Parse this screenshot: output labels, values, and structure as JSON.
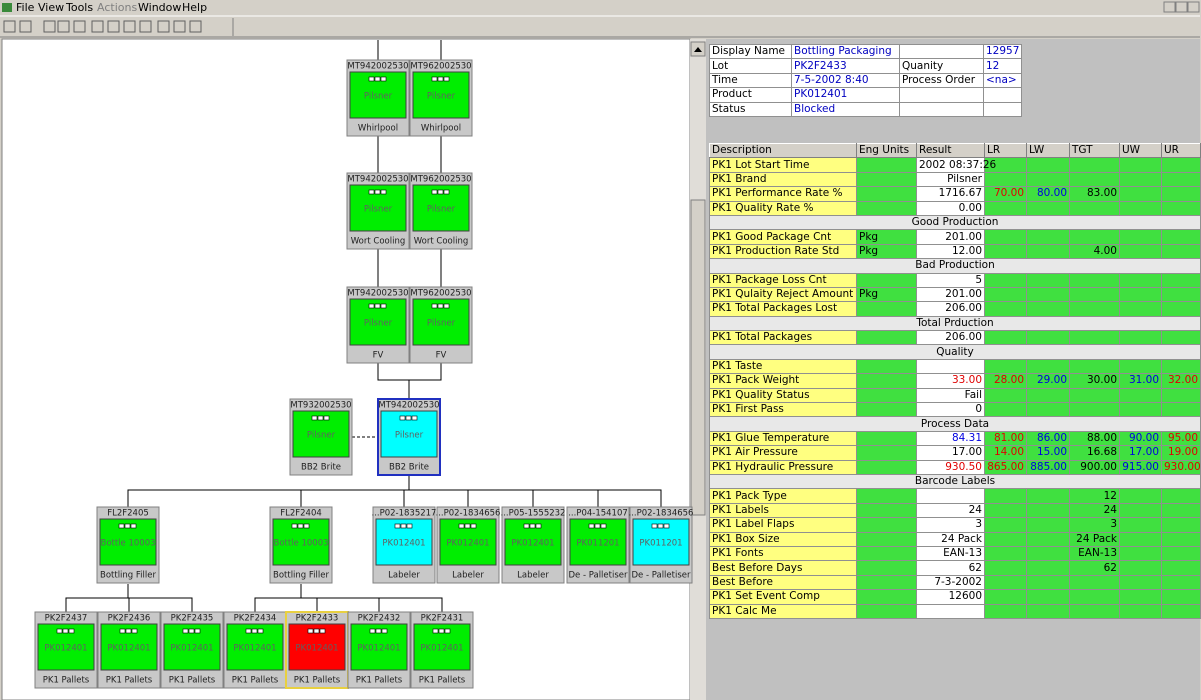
{
  "menu": [
    "File",
    "View",
    "Tools",
    "Actions",
    "Window",
    "Help"
  ],
  "nodes": [
    {
      "id": "MT942002530",
      "product": "Pilsner",
      "label": "Whirlpool",
      "color": "#00ee00"
    },
    {
      "id": "MT962002530",
      "product": "Pilsner",
      "label": "Whirlpool",
      "color": "#00ee00"
    },
    {
      "id": "MT942002530",
      "product": "Pilsner",
      "label": "Wort Cooling",
      "color": "#00ee00"
    },
    {
      "id": "MT962002530",
      "product": "Pilsner",
      "label": "Wort Cooling",
      "color": "#00ee00"
    },
    {
      "id": "MT942002530",
      "product": "Pilsner",
      "label": "FV",
      "color": "#00ee00"
    },
    {
      "id": "MT962002530",
      "product": "Pilsner",
      "label": "FV",
      "color": "#00ee00"
    },
    {
      "id": "MT932002530",
      "product": "Pilsner",
      "label": "BB2 Brite",
      "color": "#00ee00"
    },
    {
      "id": "MT942002530",
      "product": "Pilsner",
      "label": "BB2 Brite",
      "color": "#00ffff",
      "selected": true
    },
    {
      "id": "FL2F2405",
      "product": "Bottle 10003",
      "label": "Bottling Filler",
      "color": "#00ee00"
    },
    {
      "id": "FL2F2404",
      "product": "Bottle 10003",
      "label": "Bottling Filler",
      "color": "#00ee00"
    },
    {
      "id": "...P02-1835217",
      "product": "PK012401",
      "label": "Labeler",
      "color": "#00ffff"
    },
    {
      "id": "...P02-1834656",
      "product": "PK012401",
      "label": "Labeler",
      "color": "#00ee00"
    },
    {
      "id": "...P05-1555232",
      "product": "PK012401",
      "label": "Labeler",
      "color": "#00ee00"
    },
    {
      "id": "...P04-154107",
      "product": "PK011201",
      "label": "De - Palletiser",
      "color": "#00ee00"
    },
    {
      "id": "...P02-1834656",
      "product": "PK011201",
      "label": "De - Palletiser",
      "color": "#00ffff"
    },
    {
      "id": "PK2F2437",
      "product": "PK012401",
      "label": "PK1 Pallets",
      "color": "#00ee00"
    },
    {
      "id": "PK2F2436",
      "product": "PK012401",
      "label": "PK1 Pallets",
      "color": "#00ee00"
    },
    {
      "id": "PK2F2435",
      "product": "PK012401",
      "label": "PK1 Pallets",
      "color": "#00ee00"
    },
    {
      "id": "PK2F2434",
      "product": "PK012401",
      "label": "PK1 Pallets",
      "color": "#00ee00"
    },
    {
      "id": "PK2F2433",
      "product": "PK012401",
      "label": "PK1 Pallets",
      "color": "#ff0000",
      "selected": true
    },
    {
      "id": "PK2F2432",
      "product": "PK012401",
      "label": "PK1 Pallets",
      "color": "#00ee00"
    },
    {
      "id": "PK2F2431",
      "product": "PK012401",
      "label": "PK1 Pallets",
      "color": "#00ee00"
    }
  ],
  "info": {
    "rows": [
      [
        "Display Name",
        "Bottling Packaging",
        null,
        "12957"
      ],
      [
        "Lot",
        "PK2F2433",
        "Quanity",
        "12"
      ],
      [
        "Time",
        "7-5-2002 8:40",
        "Process Order",
        "<na>"
      ],
      [
        "Product",
        "PK012401",
        null,
        null
      ],
      [
        "Status",
        "Blocked",
        null,
        null
      ]
    ]
  },
  "table": {
    "columns": [
      "Description",
      "Eng Units",
      "Result",
      "LR",
      "LW",
      "TGT",
      "UW",
      "UR"
    ],
    "column_colors": [
      "#000000",
      "#000000",
      "#000000",
      "#e00000",
      "#0000e0",
      "#000000",
      "#0000e0",
      "#e00000"
    ],
    "rows": [
      {
        "cells": [
          "PK1 Lot Start Time",
          null,
          "2002 08:37:26",
          null,
          null,
          null,
          null,
          null
        ]
      },
      {
        "cells": [
          "PK1 Brand",
          null,
          "Pilsner",
          null,
          null,
          null,
          null,
          null
        ]
      },
      {
        "cells": [
          "PK1 Performance Rate %",
          null,
          "1716.67",
          "70.00",
          "80.00",
          "83.00",
          null,
          null
        ]
      },
      {
        "cells": [
          "PK1 Quality Rate %",
          null,
          "0.00",
          null,
          null,
          null,
          null,
          null
        ]
      },
      {
        "section": "Good Production"
      },
      {
        "cells": [
          "PK1 Good Package Cnt",
          "Pkg",
          "201.00",
          null,
          null,
          null,
          null,
          null
        ]
      },
      {
        "cells": [
          "PK1 Production Rate Std",
          "Pkg",
          "12.00",
          null,
          null,
          "4.00",
          null,
          null
        ]
      },
      {
        "section": "Bad Production"
      },
      {
        "cells": [
          "PK1 Package Loss Cnt",
          null,
          "5",
          null,
          null,
          null,
          null,
          null
        ]
      },
      {
        "cells": [
          "PK1 Qulaity Reject Amount",
          "Pkg",
          "201.00",
          null,
          null,
          null,
          null,
          null
        ]
      },
      {
        "cells": [
          "PK1 Total Packages Lost",
          null,
          "206.00",
          null,
          null,
          null,
          null,
          null
        ]
      },
      {
        "section": "Total Prduction"
      },
      {
        "cells": [
          "PK1 Total Packages",
          null,
          "206.00",
          null,
          null,
          null,
          null,
          null
        ]
      },
      {
        "section": "Quality"
      },
      {
        "cells": [
          "PK1 Taste",
          null,
          null,
          null,
          null,
          null,
          null,
          null
        ]
      },
      {
        "cells": [
          "PK1 Pack Weight",
          null,
          "33.00",
          "28.00",
          "29.00",
          "30.00",
          "31.00",
          "32.00"
        ],
        "result_color": "#e00000"
      },
      {
        "cells": [
          "PK1 Quality Status",
          null,
          "Fail",
          null,
          null,
          null,
          null,
          null
        ]
      },
      {
        "cells": [
          "PK1 First Pass",
          null,
          "0",
          null,
          null,
          null,
          null,
          null
        ]
      },
      {
        "section": "Process Data"
      },
      {
        "cells": [
          "PK1 Glue Temperature",
          null,
          "84.31",
          "81.00",
          "86.00",
          "88.00",
          "90.00",
          "95.00"
        ],
        "result_color": "#0000e0"
      },
      {
        "cells": [
          "PK1 Air Pressure",
          null,
          "17.00",
          "14.00",
          "15.00",
          "16.68",
          "17.00",
          "19.00"
        ]
      },
      {
        "cells": [
          "PK1 Hydraulic Pressure",
          null,
          "930.50",
          "865.00",
          "885.00",
          "900.00",
          "915.00",
          "930.00"
        ],
        "result_color": "#e00000"
      },
      {
        "section": "Barcode Labels"
      },
      {
        "cells": [
          "PK1 Pack Type",
          null,
          null,
          null,
          null,
          "12",
          null,
          null
        ]
      },
      {
        "cells": [
          "PK1 Labels",
          null,
          "24",
          null,
          null,
          "24",
          null,
          null
        ]
      },
      {
        "cells": [
          "PK1 Label Flaps",
          null,
          "3",
          null,
          null,
          "3",
          null,
          null
        ]
      },
      {
        "cells": [
          "PK1 Box Size",
          null,
          "24 Pack",
          null,
          null,
          "24 Pack",
          null,
          null
        ]
      },
      {
        "cells": [
          "PK1 Fonts",
          null,
          "EAN-13",
          null,
          null,
          "EAN-13",
          null,
          null
        ]
      },
      {
        "cells": [
          "Best Before Days",
          null,
          "62",
          null,
          null,
          "62",
          null,
          null
        ]
      },
      {
        "cells": [
          "Best Before",
          null,
          "7-3-2002",
          null,
          null,
          null,
          null,
          null
        ]
      },
      {
        "cells": [
          "PK1 Set Event Comp",
          null,
          "12600",
          null,
          null,
          null,
          null,
          null
        ]
      },
      {
        "cells": [
          "PK1 Calc Me",
          null,
          null,
          null,
          null,
          null,
          null,
          null
        ]
      }
    ]
  }
}
